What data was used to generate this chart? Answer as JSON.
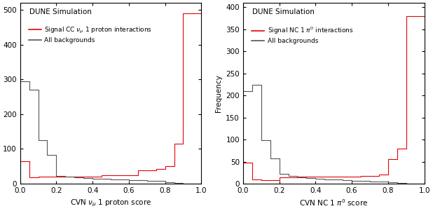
{
  "left": {
    "title": "DUNE Simulation",
    "signal_label": "Signal CC $\\nu_{\\mu}$ 1 proton interactions",
    "bg_label": "All backgrounds",
    "xlabel": "CVN $\\nu_{\\mu}$ 1 proton score",
    "ylabel": "",
    "ylim": [
      0,
      520
    ],
    "yticks": [
      0,
      100,
      200,
      300,
      400,
      500
    ],
    "signal_color": "#e8000b",
    "bg_color": "#555555",
    "signal_values": [
      65,
      18,
      20,
      20,
      20,
      20,
      20,
      20,
      20,
      25,
      25,
      25,
      25,
      38,
      38,
      42,
      50,
      115,
      490
    ],
    "bg_values": [
      295,
      270,
      125,
      82,
      22,
      20,
      18,
      16,
      15,
      14,
      12,
      12,
      11,
      10,
      9,
      8,
      5,
      3,
      0
    ]
  },
  "right": {
    "title": "DUNE Simulation",
    "signal_label": "Signal NC 1 $\\pi^{0}$ interactions",
    "bg_label": "All backgrounds",
    "xlabel": "CVN NC 1 $\\pi^{0}$ score",
    "ylabel": "Frequency",
    "ylim": [
      0,
      410
    ],
    "yticks": [
      0,
      50,
      100,
      150,
      200,
      250,
      300,
      350,
      400
    ],
    "signal_color": "#e8000b",
    "bg_color": "#555555",
    "signal_values": [
      48,
      10,
      8,
      8,
      14,
      14,
      16,
      16,
      16,
      16,
      16,
      16,
      16,
      18,
      18,
      20,
      55,
      80,
      380
    ],
    "bg_values": [
      210,
      225,
      98,
      58,
      22,
      18,
      14,
      12,
      11,
      10,
      9,
      8,
      7,
      7,
      5,
      5,
      3,
      2,
      0
    ]
  },
  "bin_edges": [
    0.0,
    0.05,
    0.1,
    0.15,
    0.2,
    0.25,
    0.3,
    0.35,
    0.4,
    0.45,
    0.5,
    0.55,
    0.6,
    0.65,
    0.7,
    0.75,
    0.8,
    0.85,
    0.9,
    1.0
  ],
  "figure_width": 6.18,
  "figure_height": 3.01,
  "dpi": 100
}
